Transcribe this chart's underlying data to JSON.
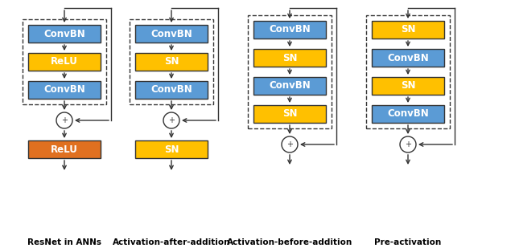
{
  "diagrams": [
    {
      "title": "ResNet in ANNs",
      "blocks": [
        {
          "label": "ConvBN",
          "color": "#5B9BD5"
        },
        {
          "label": "ReLU",
          "color": "#FFC000"
        },
        {
          "label": "ConvBN",
          "color": "#5B9BD5"
        }
      ],
      "after_add": {
        "label": "ReLU",
        "color": "#E07020"
      },
      "has_after_add": true
    },
    {
      "title": "Activation-after-addition",
      "blocks": [
        {
          "label": "ConvBN",
          "color": "#5B9BD5"
        },
        {
          "label": "SN",
          "color": "#FFC000"
        },
        {
          "label": "ConvBN",
          "color": "#5B9BD5"
        }
      ],
      "after_add": {
        "label": "SN",
        "color": "#FFC000"
      },
      "has_after_add": true
    },
    {
      "title": "Activation-before-addition",
      "blocks": [
        {
          "label": "ConvBN",
          "color": "#5B9BD5"
        },
        {
          "label": "SN",
          "color": "#FFC000"
        },
        {
          "label": "ConvBN",
          "color": "#5B9BD5"
        },
        {
          "label": "SN",
          "color": "#FFC000"
        }
      ],
      "after_add": null,
      "has_after_add": false
    },
    {
      "title": "Pre-activation",
      "blocks": [
        {
          "label": "SN",
          "color": "#FFC000"
        },
        {
          "label": "ConvBN",
          "color": "#5B9BD5"
        },
        {
          "label": "SN",
          "color": "#FFC000"
        },
        {
          "label": "ConvBN",
          "color": "#5B9BD5"
        }
      ],
      "after_add": null,
      "has_after_add": false
    }
  ],
  "blue_color": "#5B9BD5",
  "orange_color": "#FFC000",
  "relu_color": "#E07020",
  "title_fontsize": 7.5,
  "block_fontsize": 8.5
}
